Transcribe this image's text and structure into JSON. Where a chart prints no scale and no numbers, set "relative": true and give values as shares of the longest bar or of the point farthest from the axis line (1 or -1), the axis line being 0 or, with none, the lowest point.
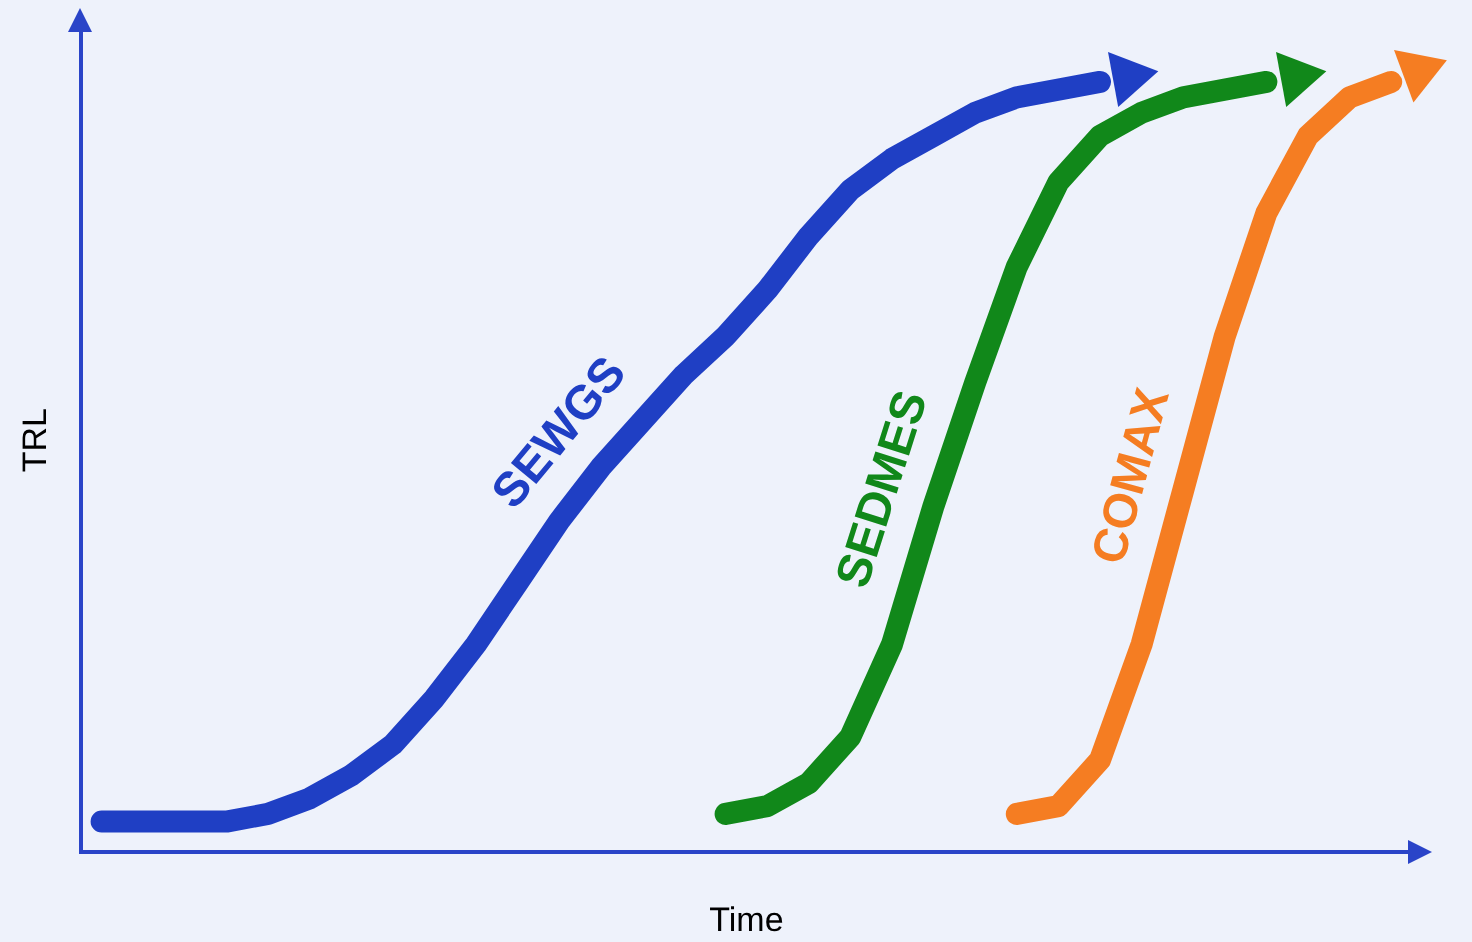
{
  "chart_data": {
    "type": "line",
    "relative": true,
    "xlabel": "Time",
    "ylabel": "TRL",
    "legend": false,
    "grid": false,
    "marker": "none",
    "categories": [
      null,
      null,
      null,
      null,
      null,
      null,
      null,
      null,
      null,
      null,
      null,
      null,
      null,
      null,
      null,
      null,
      null,
      null,
      null,
      null,
      null,
      null,
      null,
      null,
      null,
      null,
      null,
      null,
      null,
      null,
      null,
      null
    ],
    "series": [
      {
        "name": "SEWGS",
        "color": "#1f3fc4",
        "values": [
          0.04,
          0.04,
          0.04,
          0.04,
          0.05,
          0.07,
          0.1,
          0.14,
          0.2,
          0.27,
          0.35,
          0.43,
          0.5,
          0.56,
          0.62,
          0.67,
          0.73,
          0.8,
          0.86,
          0.9,
          0.93,
          0.96,
          0.98,
          0.99,
          1,
          null,
          null,
          null,
          null,
          null,
          null,
          null
        ]
      },
      {
        "name": "SEDMES",
        "color": "#11881a",
        "values": [
          null,
          null,
          null,
          null,
          null,
          null,
          null,
          null,
          null,
          null,
          null,
          null,
          null,
          null,
          null,
          0.05,
          0.06,
          0.09,
          0.15,
          0.27,
          0.45,
          0.61,
          0.76,
          0.87,
          0.93,
          0.96,
          0.98,
          0.99,
          1,
          null,
          null,
          null
        ]
      },
      {
        "name": "COMAX",
        "color": "#f57d22",
        "values": [
          null,
          null,
          null,
          null,
          null,
          null,
          null,
          null,
          null,
          null,
          null,
          null,
          null,
          null,
          null,
          null,
          null,
          null,
          null,
          null,
          null,
          null,
          0.05,
          0.06,
          0.12,
          0.27,
          0.47,
          0.67,
          0.83,
          0.93,
          0.98,
          1
        ]
      }
    ]
  }
}
